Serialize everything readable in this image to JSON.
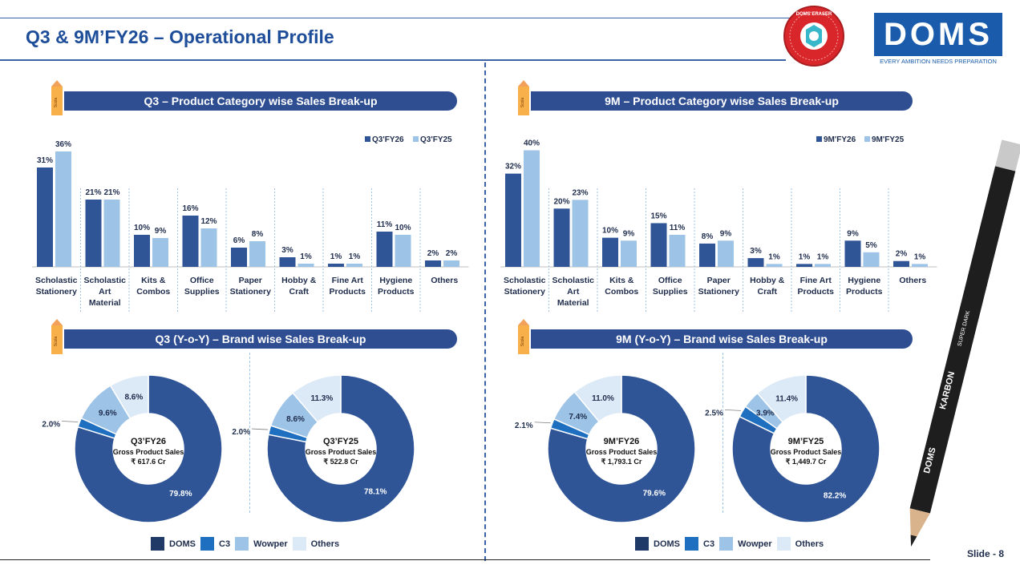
{
  "page": {
    "title": "Q3 & 9M’FY26 – Operational Profile",
    "slide_label": "Slide - 8",
    "logo_text": "DOMS",
    "logo_tagline": "EVERY AMBITION NEEDS PREPARATION",
    "badge_text": "DOMS ERASER",
    "pencil_brand": "DOMS",
    "pencil_name": "KARBON",
    "pencil_sub": "SUPER DARK",
    "icon_text": "Scola"
  },
  "colors": {
    "primary": "#2f5597",
    "light": "#9dc3e6",
    "banner": "#2f4e92",
    "doms": "#2f5597",
    "c3": "#1f6fc0",
    "wowper": "#9dc3e6",
    "others": "#dce9f7",
    "legend_doms": "#1f3a66"
  },
  "sections": {
    "q3_cat_title": "Q3 – Product Category wise Sales Break-up",
    "m9_cat_title": "9M – Product Category wise Sales Break-up",
    "q3_brand_title": "Q3 (Y-o-Y) – Brand wise Sales Break-up",
    "m9_brand_title": "9M (Y-o-Y) – Brand wise Sales Break-up"
  },
  "brand_legend": [
    "DOMS",
    "C3",
    "Wowper",
    "Others"
  ],
  "chart_data": [
    {
      "type": "bar",
      "title": "Q3 – Product Category wise Sales Break-up",
      "categories": [
        [
          "Scholastic",
          "Stationery"
        ],
        [
          "Scholastic",
          "Art",
          "Material"
        ],
        [
          "Kits &",
          "Combos"
        ],
        [
          "Office",
          "Supplies"
        ],
        [
          "Paper",
          "Stationery"
        ],
        [
          "Hobby &",
          "Craft"
        ],
        [
          "Fine Art",
          "Products"
        ],
        [
          "Hygiene",
          "Products"
        ],
        [
          "Others"
        ]
      ],
      "series": [
        {
          "name": "Q3'FY26",
          "values": [
            31,
            21,
            10,
            16,
            6,
            3,
            1,
            11,
            2
          ]
        },
        {
          "name": "Q3'FY25",
          "values": [
            36,
            21,
            9,
            12,
            8,
            1,
            1,
            10,
            2
          ]
        }
      ],
      "ylim": [
        0,
        40
      ],
      "legend": "top-right"
    },
    {
      "type": "bar",
      "title": "9M – Product Category wise Sales Break-up",
      "categories": [
        [
          "Scholastic",
          "Stationery"
        ],
        [
          "Scholastic",
          "Art",
          "Material"
        ],
        [
          "Kits &",
          "Combos"
        ],
        [
          "Office",
          "Supplies"
        ],
        [
          "Paper",
          "Stationery"
        ],
        [
          "Hobby &",
          "Craft"
        ],
        [
          "Fine Art",
          "Products"
        ],
        [
          "Hygiene",
          "Products"
        ],
        [
          "Others"
        ]
      ],
      "series": [
        {
          "name": "9M'FY26",
          "values": [
            32,
            20,
            10,
            15,
            8,
            3,
            1,
            9,
            2
          ]
        },
        {
          "name": "9M'FY25",
          "values": [
            40,
            23,
            9,
            11,
            9,
            1,
            1,
            5,
            1
          ]
        }
      ],
      "ylim": [
        0,
        44
      ],
      "legend": "top-right"
    },
    {
      "type": "pie",
      "title": "Q3'FY26",
      "center_lines": [
        "Q3’FY26",
        "Gross Product Sales",
        "₹ 617.6 Cr"
      ],
      "labels": [
        "DOMS",
        "C3",
        "Wowper",
        "Others"
      ],
      "values": [
        79.8,
        2.0,
        9.6,
        8.6
      ],
      "value_labels": [
        "79.8%",
        "2.0%",
        "9.6%",
        "8.6%"
      ]
    },
    {
      "type": "pie",
      "title": "Q3'FY25",
      "center_lines": [
        "Q3’FY25",
        "Gross Product Sales",
        "₹ 522.8 Cr"
      ],
      "labels": [
        "DOMS",
        "C3",
        "Wowper",
        "Others"
      ],
      "values": [
        78.1,
        2.0,
        8.6,
        11.3
      ],
      "value_labels": [
        "78.1%",
        "2.0%",
        "8.6%",
        "11.3%"
      ]
    },
    {
      "type": "pie",
      "title": "9M'FY26",
      "center_lines": [
        "9M’FY26",
        "Gross Product Sales",
        "₹ 1,793.1 Cr"
      ],
      "labels": [
        "DOMS",
        "C3",
        "Wowper",
        "Others"
      ],
      "values": [
        79.6,
        2.1,
        7.4,
        11.0
      ],
      "value_labels": [
        "79.6%",
        "2.1%",
        "7.4%",
        "11.0%"
      ]
    },
    {
      "type": "pie",
      "title": "9M'FY25",
      "center_lines": [
        "9M’FY25",
        "Gross Product Sales",
        "₹ 1,449.7 Cr"
      ],
      "labels": [
        "DOMS",
        "C3",
        "Wowper",
        "Others"
      ],
      "values": [
        82.2,
        2.5,
        3.9,
        11.4
      ],
      "value_labels": [
        "82.2%",
        "2.5%",
        "3.9%",
        "11.4%"
      ]
    }
  ]
}
